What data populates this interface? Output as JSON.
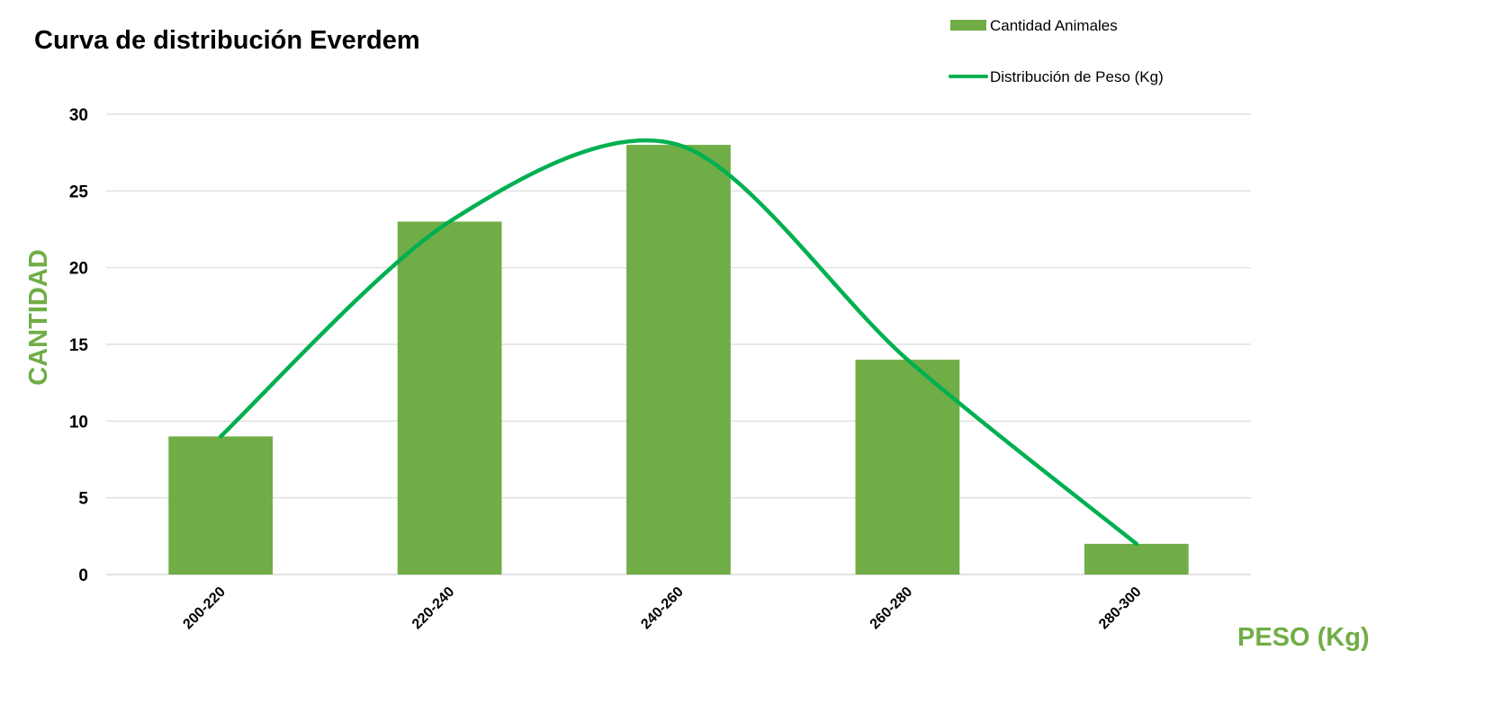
{
  "chart_data": {
    "type": "bar",
    "title": "Curva de distribución Everdem",
    "xlabel": "PESO (Kg)",
    "ylabel": "CANTIDAD",
    "categories": [
      "200-220",
      "220-240",
      "240-260",
      "260-280",
      "280-300"
    ],
    "ylim": [
      0,
      30
    ],
    "yticks": [
      0,
      5,
      10,
      15,
      20,
      25,
      30
    ],
    "grid": true,
    "legend_position": "top-right",
    "series": [
      {
        "name": "Cantidad Animales",
        "type": "bar",
        "values": [
          9,
          23,
          28,
          14,
          2
        ],
        "color": "#70ad47"
      },
      {
        "name": "Distribución de Peso (Kg)",
        "type": "smooth-line",
        "values": [
          9,
          23,
          28,
          14,
          2
        ],
        "color": "#00b050"
      }
    ],
    "axis_title_color": "#70ad47",
    "gridline_color": "#d9d9d9"
  }
}
